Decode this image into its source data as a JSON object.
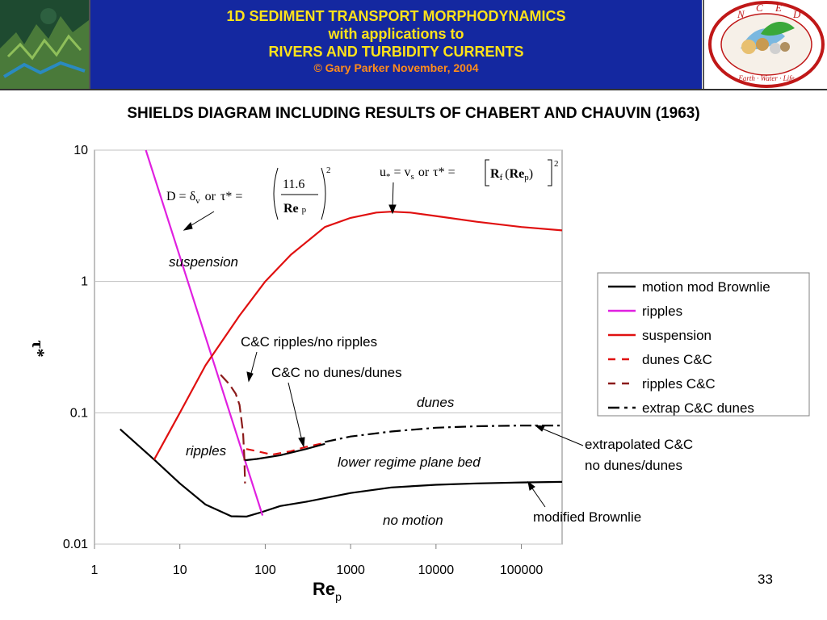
{
  "header": {
    "line1": "1D SEDIMENT TRANSPORT MORPHODYNAMICS",
    "line2": "with applications to",
    "line3": "RIVERS AND TURBIDITY CURRENTS",
    "copyright": "© Gary Parker November, 2004",
    "logo_letters": [
      "N",
      "C",
      "E",
      "D"
    ],
    "logo_motto": "Earth · Water · Life"
  },
  "slide_title": "SHIELDS DIAGRAM INCLUDING RESULTS OF CHABERT AND CHAUVIN (1963)",
  "page_number": "33",
  "chart_data": {
    "type": "line",
    "title": "",
    "xlabel": "Re",
    "xlabel_sub": "p",
    "ylabel": "τ*",
    "x_scale": "log",
    "y_scale": "log",
    "xlim": [
      1,
      300000
    ],
    "ylim": [
      0.01,
      10
    ],
    "x_ticks": [
      1,
      10,
      100,
      1000,
      10000,
      100000
    ],
    "x_tick_labels": [
      "1",
      "10",
      "100",
      "1000",
      "10000",
      "100000"
    ],
    "y_ticks": [
      0.01,
      0.1,
      1,
      10
    ],
    "y_tick_labels": [
      "0.01",
      "0.1",
      "1",
      "10"
    ],
    "grid": "horizontal",
    "legend_position": "right",
    "series": [
      {
        "name": "motion mod Brownlie",
        "color": "#000000",
        "style": "solid",
        "x": [
          2,
          5,
          10,
          20,
          40,
          60,
          90,
          150,
          300,
          1000,
          3000,
          10000,
          30000,
          100000,
          300000
        ],
        "y": [
          0.075,
          0.044,
          0.029,
          0.02,
          0.0163,
          0.0162,
          0.0175,
          0.0195,
          0.021,
          0.0245,
          0.027,
          0.0283,
          0.029,
          0.0295,
          0.0298
        ]
      },
      {
        "name": "ripples",
        "color": "#e020e0",
        "style": "solid",
        "x": [
          4,
          93
        ],
        "y": [
          10,
          0.0165
        ]
      },
      {
        "name": "suspension",
        "color": "#e01010",
        "style": "solid",
        "x": [
          5,
          10,
          20,
          50,
          100,
          200,
          500,
          1000,
          2000,
          3000,
          5000,
          10000,
          30000,
          100000,
          300000
        ],
        "y": [
          0.044,
          0.1,
          0.23,
          0.55,
          1.0,
          1.6,
          2.6,
          3.05,
          3.35,
          3.4,
          3.35,
          3.15,
          2.85,
          2.6,
          2.45
        ]
      },
      {
        "name": "dunes C&C",
        "color": "#e01010",
        "style": "dash",
        "x": [
          60,
          80,
          120,
          200,
          300,
          500
        ],
        "y": [
          0.053,
          0.051,
          0.048,
          0.051,
          0.055,
          0.059
        ]
      },
      {
        "name": "ripples C&C",
        "color": "#8b1a1a",
        "style": "longdash",
        "x": [
          30,
          38,
          45,
          50,
          55,
          57,
          58
        ],
        "y": [
          0.195,
          0.165,
          0.14,
          0.115,
          0.07,
          0.045,
          0.029
        ]
      },
      {
        "name": "extrap C&C dunes",
        "color": "#000000",
        "style": "dashdot",
        "x": [
          500,
          1000,
          3000,
          10000,
          30000,
          100000,
          300000
        ],
        "y": [
          0.06,
          0.066,
          0.072,
          0.077,
          0.079,
          0.08,
          0.08
        ]
      },
      {
        "name": "",
        "color": "#000000",
        "style": "solid",
        "x": [
          58,
          80,
          150,
          300,
          500
        ],
        "y": [
          0.0435,
          0.0445,
          0.0475,
          0.053,
          0.058
        ]
      }
    ],
    "annotations": {
      "eq_left_lhs": "D = δ",
      "eq_left_sub": "v",
      "eq_left_or": "or",
      "eq_left_tau": "τ* =",
      "eq_left_num": "11.6",
      "eq_left_den": "Re",
      "eq_left_den_sub": "p",
      "eq_left_exp": "2",
      "eq_right_lhs": "u",
      "eq_right_lhs_sub": "*",
      "eq_right_eq": "= v",
      "eq_right_eq_sub": "s",
      "eq_right_or": "or",
      "eq_right_tau": "τ* =",
      "eq_right_R": "R",
      "eq_right_R_sub": "f",
      "eq_right_Re": "Re",
      "eq_right_Re_sub": "p",
      "eq_right_exp": "2",
      "suspension": "suspension",
      "ripples": "ripples",
      "dunes": "dunes",
      "lower_regime": "lower regime plane bed",
      "no_motion": "no motion",
      "cc_ripples": "C&C ripples/no ripples",
      "cc_dunes": "C&C no dunes/dunes",
      "extrap_line1": "extrapolated C&C",
      "extrap_line2": "no dunes/dunes",
      "mod_brownlie": "modified Brownlie"
    }
  }
}
